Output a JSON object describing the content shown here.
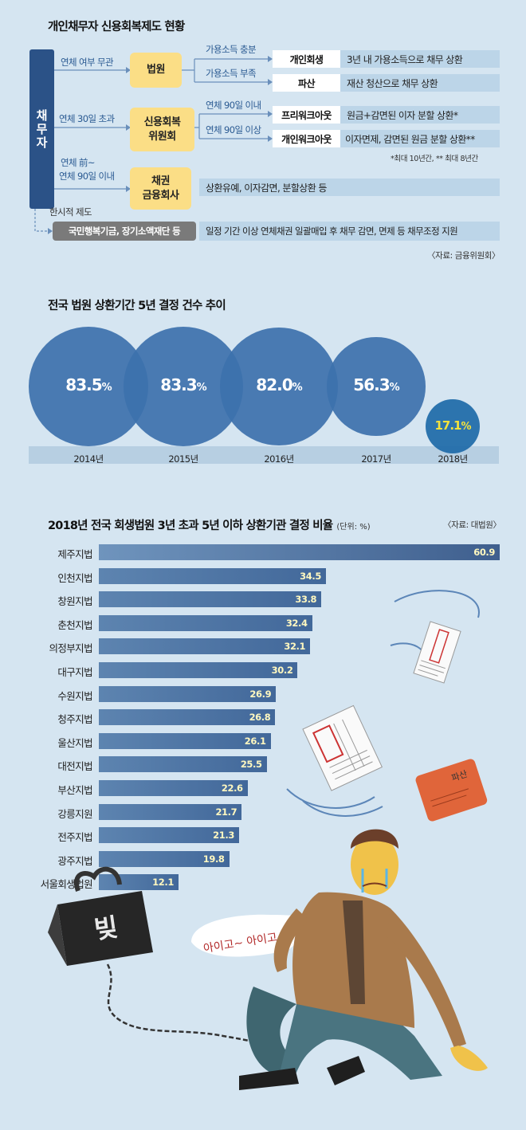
{
  "section1": {
    "title": "개인채무자 신용회복제도 현황",
    "debtor": "채무자",
    "flow_labels": {
      "any_overdue": "연체 여부 무관",
      "over30": "연체 30일 초과",
      "pre_line1": "연체 前~",
      "pre_line2": "연체 90일 이내",
      "temp": "한시적 제도",
      "income_ok": "가용소득 충분",
      "income_low": "가용소득 부족",
      "within90": "연체 90일 이내",
      "over90": "연체 90일 이상"
    },
    "orgs": {
      "court": "법원",
      "ccrs_line1": "신용회복",
      "ccrs_line2": "위원회",
      "creditor_line1": "채권",
      "creditor_line2": "금융회사",
      "temp_fund": "국민행복기금, 장기소액재단 등"
    },
    "programs": {
      "rehab": "개인회생",
      "bankrupt": "파산",
      "prework": "프리워크아웃",
      "work": "개인워크아웃"
    },
    "descs": {
      "rehab": "3년 내 가용소득으로 채무 상환",
      "bankrupt": "재산 청산으로 채무 상환",
      "prework": "원금+감면된 이자 분할 상환*",
      "work": "이자면제, 감면된 원금 분할 상환**",
      "creditor": "상환유예, 이자감면, 분할상환 등",
      "temp": "일정 기간 이상 연체채권 일괄매입 후 채무 감면, 면제 등 채무조정 지원"
    },
    "footnote": "*최대 10년간, ** 최대 8년간",
    "source": "〈자료: 금융위원회〉"
  },
  "section2": {
    "title": "전국 법원 상환기간 5년 결정 건수 추이"
  },
  "section3": {
    "title": "2018년 전국 회생법원 3년 초과 5년 이하 상환기관 결정 비율",
    "unit": "(단위: %)",
    "source": "〈자료: 대법원〉"
  },
  "illustration": {
    "speech": "아이고~ 아이고~",
    "debt_weight": "빚",
    "paper_stamp": "파산"
  },
  "colors": {
    "bubble": "#3d71ad",
    "bubble_last": "#1d6aa8",
    "highlight": "#f4e23c",
    "bar": "#4d74a5"
  },
  "chart_data": [
    {
      "type": "scatter",
      "title": "전국 법원 상환기간 5년 결정 건수 추이",
      "categories": [
        "2014년",
        "2015년",
        "2016년",
        "2017년",
        "2018년"
      ],
      "values": [
        83.5,
        83.3,
        82.0,
        56.3,
        17.1
      ],
      "labels": [
        "83.5%",
        "83.3%",
        "82.0%",
        "56.3%",
        "17.1%"
      ]
    },
    {
      "type": "bar",
      "orientation": "horizontal",
      "title": "2018년 전국 회생법원 3년 초과 5년 이하 상환기관 결정 비율",
      "unit": "%",
      "categories": [
        "제주지법",
        "인천지법",
        "창원지법",
        "춘천지법",
        "의정부지법",
        "대구지법",
        "수원지법",
        "청주지법",
        "울산지법",
        "대전지법",
        "부산지법",
        "강릉지원",
        "전주지법",
        "광주지법",
        "서울회생법원"
      ],
      "values": [
        60.9,
        34.5,
        33.8,
        32.4,
        32.1,
        30.2,
        26.9,
        26.8,
        26.1,
        25.5,
        22.6,
        21.7,
        21.3,
        19.8,
        12.1
      ],
      "labels": [
        "60.9",
        "34.5",
        "33.8",
        "32.4",
        "32.1",
        "30.2",
        "26.9",
        "26.8",
        "26.1",
        "25.5",
        "22.6",
        "21.7",
        "21.3",
        "19.8",
        "12.1"
      ]
    }
  ]
}
